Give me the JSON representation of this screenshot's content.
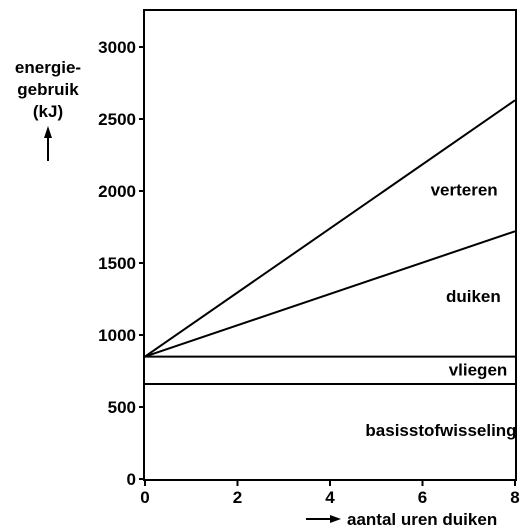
{
  "chart_data": {
    "type": "line",
    "title": "",
    "ylabel_lines": [
      "energie-",
      "gebruik",
      "(kJ)"
    ],
    "xlabel": "aantal uren duiken",
    "xlim": [
      0,
      8
    ],
    "ylim": [
      0,
      3250
    ],
    "x_ticks": [
      0,
      2,
      4,
      6,
      8
    ],
    "y_ticks": [
      0,
      500,
      1000,
      1500,
      2000,
      2500,
      3000
    ],
    "grid": false,
    "series": [
      {
        "x": [
          0,
          8
        ],
        "y": [
          850,
          850
        ]
      },
      {
        "x": [
          0,
          8
        ],
        "y": [
          660,
          660
        ]
      },
      {
        "x": [
          0,
          8
        ],
        "y": [
          850,
          1720
        ]
      },
      {
        "x": [
          0,
          8
        ],
        "y": [
          850,
          2630
        ]
      }
    ],
    "annotations": [
      {
        "text": "verteren",
        "x": 6.9,
        "y": 2010
      },
      {
        "text": "duiken",
        "x": 7.1,
        "y": 1270
      },
      {
        "text": "vliegen",
        "x": 7.2,
        "y": 760
      },
      {
        "text": "basisstofwisseling",
        "x": 6.4,
        "y": 340
      }
    ]
  }
}
